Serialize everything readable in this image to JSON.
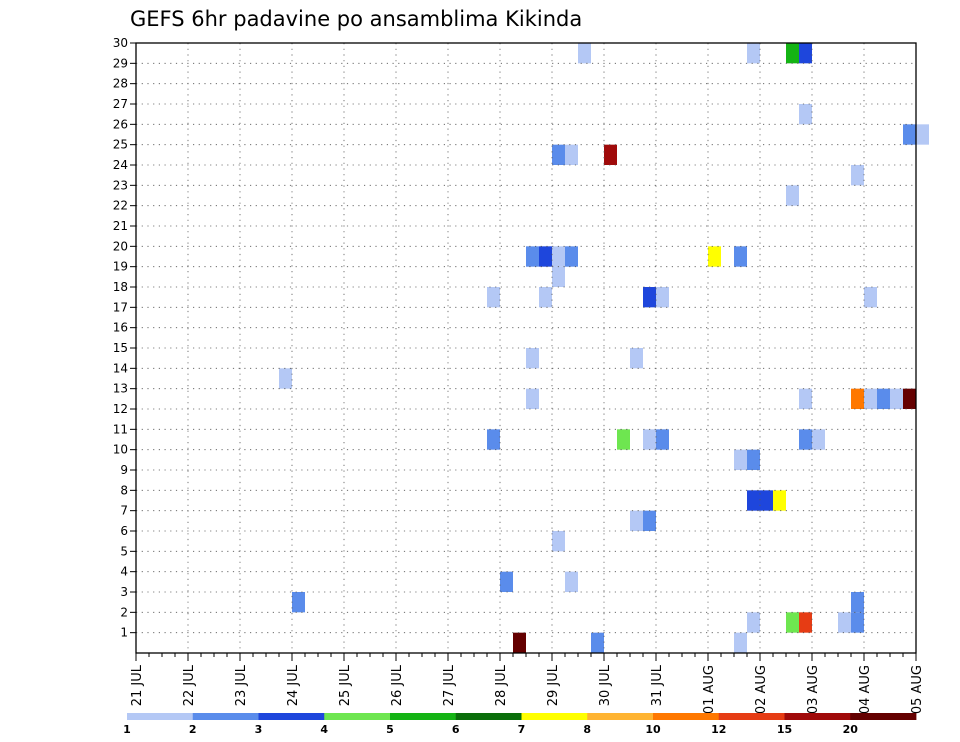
{
  "chart_data": {
    "type": "heatmap",
    "title": "GEFS 6hr padavine po ansamblima Kikinda",
    "xlabel": "",
    "ylabel": "",
    "x_start": "21 JUL 00Z",
    "x_end": "05 AUG 00Z",
    "x_step_hours": 6,
    "x_tick_labels": [
      "21 JUL",
      "22 JUL",
      "23 JUL",
      "24 JUL",
      "25 JUL",
      "26 JUL",
      "27 JUL",
      "28 JUL",
      "29 JUL",
      "30 JUL",
      "31 JUL",
      "01 AUG",
      "02 AUG",
      "03 AUG",
      "04 AUG",
      "05 AUG"
    ],
    "y_tick_labels": [
      "1",
      "2",
      "3",
      "4",
      "5",
      "6",
      "7",
      "8",
      "9",
      "10",
      "11",
      "12",
      "13",
      "14",
      "15",
      "16",
      "17",
      "18",
      "19",
      "20",
      "21",
      "22",
      "23",
      "24",
      "25",
      "26",
      "27",
      "28",
      "29",
      "30"
    ],
    "y_range": [
      0,
      30
    ],
    "grid": true,
    "colorbar": {
      "boundaries": [
        1,
        2,
        3,
        4,
        5,
        6,
        7,
        8,
        10,
        12,
        15,
        20
      ],
      "tick_labels": [
        "1",
        "2",
        "3",
        "4",
        "5",
        "6",
        "7",
        "8",
        "10",
        "12",
        "15",
        "20"
      ],
      "colors": [
        "#b4c8f5",
        "#5a8ceb",
        "#1e46dc",
        "#6ee650",
        "#14b414",
        "#0a6e0a",
        "#ffff00",
        "#ffb432",
        "#ff7800",
        "#e63c14",
        "#a00a0a",
        "#640000"
      ]
    },
    "cells": [
      {
        "time": "29 JUL 18Z",
        "member": 30,
        "level": 0
      },
      {
        "time": "02 AUG 00Z",
        "member": 30,
        "level": 0
      },
      {
        "time": "02 AUG 18Z",
        "member": 30,
        "level": 4
      },
      {
        "time": "03 AUG 00Z",
        "member": 30,
        "level": 2
      },
      {
        "time": "03 AUG 00Z",
        "member": 27,
        "level": 0
      },
      {
        "time": "05 AUG 00Z",
        "member": 26,
        "level": 1
      },
      {
        "time": "05 AUG 06Z",
        "member": 26,
        "level": 0
      },
      {
        "time": "29 JUL 06Z",
        "member": 25,
        "level": 1
      },
      {
        "time": "29 JUL 12Z",
        "member": 25,
        "level": 0
      },
      {
        "time": "30 JUL 06Z",
        "member": 25,
        "level": 10
      },
      {
        "time": "04 AUG 00Z",
        "member": 24,
        "level": 0
      },
      {
        "time": "02 AUG 18Z",
        "member": 23,
        "level": 0
      },
      {
        "time": "28 JUL 18Z",
        "member": 20,
        "level": 1
      },
      {
        "time": "29 JUL 00Z",
        "member": 20,
        "level": 2
      },
      {
        "time": "29 JUL 06Z",
        "member": 20,
        "level": 0
      },
      {
        "time": "29 JUL 12Z",
        "member": 20,
        "level": 1
      },
      {
        "time": "01 AUG 06Z",
        "member": 20,
        "level": 6
      },
      {
        "time": "01 AUG 18Z",
        "member": 20,
        "level": 1
      },
      {
        "time": "29 JUL 06Z",
        "member": 19,
        "level": 0
      },
      {
        "time": "28 JUL 00Z",
        "member": 18,
        "level": 0
      },
      {
        "time": "29 JUL 00Z",
        "member": 18,
        "level": 0
      },
      {
        "time": "31 JUL 00Z",
        "member": 18,
        "level": 2
      },
      {
        "time": "31 JUL 06Z",
        "member": 18,
        "level": 0
      },
      {
        "time": "04 AUG 06Z",
        "member": 18,
        "level": 0
      },
      {
        "time": "28 JUL 18Z",
        "member": 15,
        "level": 0
      },
      {
        "time": "30 JUL 18Z",
        "member": 15,
        "level": 0
      },
      {
        "time": "24 JUL 00Z",
        "member": 14,
        "level": 0
      },
      {
        "time": "28 JUL 18Z",
        "member": 13,
        "level": 0
      },
      {
        "time": "03 AUG 00Z",
        "member": 13,
        "level": 0
      },
      {
        "time": "04 AUG 00Z",
        "member": 13,
        "level": 8
      },
      {
        "time": "04 AUG 06Z",
        "member": 13,
        "level": 0
      },
      {
        "time": "04 AUG 12Z",
        "member": 13,
        "level": 1
      },
      {
        "time": "04 AUG 18Z",
        "member": 13,
        "level": 0
      },
      {
        "time": "05 AUG 00Z",
        "member": 13,
        "level": 11
      },
      {
        "time": "28 JUL 00Z",
        "member": 11,
        "level": 1
      },
      {
        "time": "30 JUL 12Z",
        "member": 11,
        "level": 3
      },
      {
        "time": "31 JUL 00Z",
        "member": 11,
        "level": 0
      },
      {
        "time": "31 JUL 06Z",
        "member": 11,
        "level": 1
      },
      {
        "time": "03 AUG 00Z",
        "member": 11,
        "level": 1
      },
      {
        "time": "03 AUG 06Z",
        "member": 11,
        "level": 0
      },
      {
        "time": "01 AUG 18Z",
        "member": 10,
        "level": 0
      },
      {
        "time": "02 AUG 00Z",
        "member": 10,
        "level": 1
      },
      {
        "time": "02 AUG 00Z",
        "member": 8,
        "level": 2
      },
      {
        "time": "02 AUG 06Z",
        "member": 8,
        "level": 2
      },
      {
        "time": "02 AUG 12Z",
        "member": 8,
        "level": 6
      },
      {
        "time": "30 JUL 18Z",
        "member": 7,
        "level": 0
      },
      {
        "time": "31 JUL 00Z",
        "member": 7,
        "level": 1
      },
      {
        "time": "29 JUL 06Z",
        "member": 6,
        "level": 0
      },
      {
        "time": "28 JUL 06Z",
        "member": 4,
        "level": 1
      },
      {
        "time": "29 JUL 12Z",
        "member": 4,
        "level": 0
      },
      {
        "time": "24 JUL 06Z",
        "member": 3,
        "level": 1
      },
      {
        "time": "04 AUG 00Z",
        "member": 3,
        "level": 1
      },
      {
        "time": "02 AUG 00Z",
        "member": 2,
        "level": 0
      },
      {
        "time": "02 AUG 18Z",
        "member": 2,
        "level": 3
      },
      {
        "time": "03 AUG 00Z",
        "member": 2,
        "level": 9
      },
      {
        "time": "03 AUG 18Z",
        "member": 2,
        "level": 0
      },
      {
        "time": "04 AUG 00Z",
        "member": 2,
        "level": 1
      },
      {
        "time": "28 JUL 12Z",
        "member": 1,
        "level": 11
      },
      {
        "time": "30 JUL 00Z",
        "member": 1,
        "level": 1
      },
      {
        "time": "01 AUG 18Z",
        "member": 1,
        "level": 0
      }
    ]
  }
}
